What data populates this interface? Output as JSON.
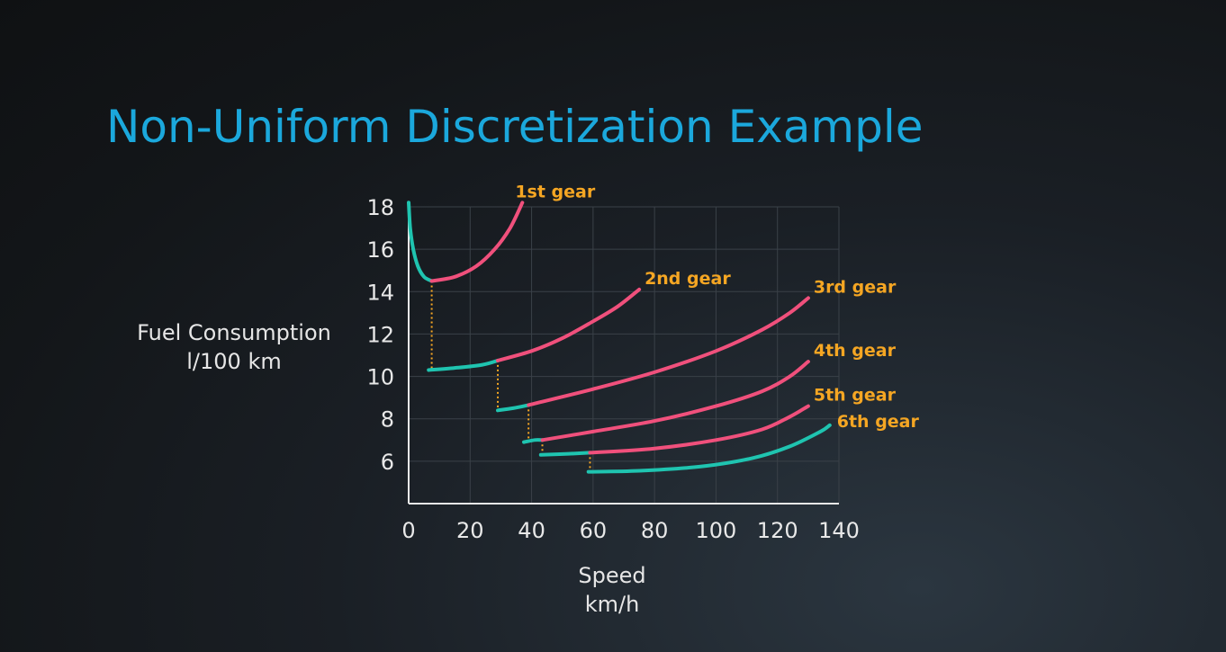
{
  "slide": {
    "title": "Non-Uniform Discretization Example"
  },
  "chart_data": {
    "type": "line",
    "xlabel_lines": [
      "Speed",
      "km/h"
    ],
    "ylabel_lines": [
      "Fuel Consumption",
      "l/100 km"
    ],
    "xlim": [
      0,
      140
    ],
    "ylim": [
      4,
      18
    ],
    "x_ticks": [
      0,
      20,
      40,
      60,
      80,
      100,
      120,
      140
    ],
    "y_ticks": [
      6,
      8,
      10,
      12,
      14,
      16,
      18
    ],
    "grid": true,
    "colors": {
      "optimal": "#1fc4b0",
      "suboptimal": "#f0507c",
      "connector": "#f5a623",
      "label": "#f5a623",
      "axis": "#e8e8e8",
      "grid": "#3a4148"
    },
    "series": [
      {
        "name": "1st gear",
        "segments": [
          {
            "style": "optimal",
            "points": [
              [
                0,
                18.2
              ],
              [
                0.5,
                17.0
              ],
              [
                1.5,
                16.0
              ],
              [
                3,
                15.2
              ],
              [
                5,
                14.7
              ],
              [
                7.5,
                14.5
              ]
            ]
          },
          {
            "style": "suboptimal",
            "points": [
              [
                7.5,
                14.5
              ],
              [
                15,
                14.7
              ],
              [
                22,
                15.2
              ],
              [
                28,
                16.0
              ],
              [
                33,
                17.0
              ],
              [
                37,
                18.2
              ]
            ]
          }
        ]
      },
      {
        "name": "2nd gear",
        "segments": [
          {
            "style": "optimal",
            "points": [
              [
                6.5,
                10.3
              ],
              [
                15,
                10.4
              ],
              [
                24,
                10.55
              ],
              [
                29,
                10.75
              ]
            ]
          },
          {
            "style": "suboptimal",
            "points": [
              [
                29,
                10.75
              ],
              [
                40,
                11.2
              ],
              [
                50,
                11.8
              ],
              [
                60,
                12.6
              ],
              [
                68,
                13.3
              ],
              [
                75,
                14.1
              ]
            ]
          }
        ]
      },
      {
        "name": "3rd gear",
        "segments": [
          {
            "style": "optimal",
            "points": [
              [
                29,
                8.4
              ],
              [
                34,
                8.5
              ],
              [
                39,
                8.65
              ]
            ]
          },
          {
            "style": "suboptimal",
            "points": [
              [
                39,
                8.65
              ],
              [
                60,
                9.4
              ],
              [
                80,
                10.2
              ],
              [
                100,
                11.2
              ],
              [
                115,
                12.2
              ],
              [
                124,
                13.0
              ],
              [
                130,
                13.7
              ]
            ]
          }
        ]
      },
      {
        "name": "4th gear",
        "segments": [
          {
            "style": "optimal",
            "points": [
              [
                37.5,
                6.9
              ],
              [
                41,
                7.0
              ],
              [
                43.5,
                7.0
              ]
            ]
          },
          {
            "style": "suboptimal",
            "points": [
              [
                43.5,
                7.0
              ],
              [
                60,
                7.4
              ],
              [
                80,
                7.9
              ],
              [
                100,
                8.6
              ],
              [
                115,
                9.3
              ],
              [
                124,
                10.0
              ],
              [
                130,
                10.7
              ]
            ]
          }
        ]
      },
      {
        "name": "5th gear",
        "segments": [
          {
            "style": "optimal",
            "points": [
              [
                43,
                6.3
              ],
              [
                52,
                6.35
              ],
              [
                59,
                6.4
              ]
            ]
          },
          {
            "style": "suboptimal",
            "points": [
              [
                59,
                6.4
              ],
              [
                80,
                6.6
              ],
              [
                100,
                7.0
              ],
              [
                115,
                7.5
              ],
              [
                124,
                8.1
              ],
              [
                130,
                8.6
              ]
            ]
          }
        ]
      },
      {
        "name": "6th gear",
        "segments": [
          {
            "style": "optimal",
            "points": [
              [
                58.5,
                5.5
              ],
              [
                75,
                5.55
              ],
              [
                95,
                5.75
              ],
              [
                112,
                6.15
              ],
              [
                124,
                6.7
              ],
              [
                134,
                7.4
              ],
              [
                137,
                7.7
              ]
            ]
          }
        ]
      }
    ],
    "connectors": [
      {
        "x": 7.5,
        "y_from": 14.5,
        "y_to": 10.3
      },
      {
        "x": 29,
        "y_from": 10.75,
        "y_to": 8.4
      },
      {
        "x": 39,
        "y_from": 8.65,
        "y_to": 6.9
      },
      {
        "x": 43.5,
        "y_from": 7.0,
        "y_to": 6.3
      },
      {
        "x": 59,
        "y_from": 6.4,
        "y_to": 5.5
      }
    ]
  }
}
